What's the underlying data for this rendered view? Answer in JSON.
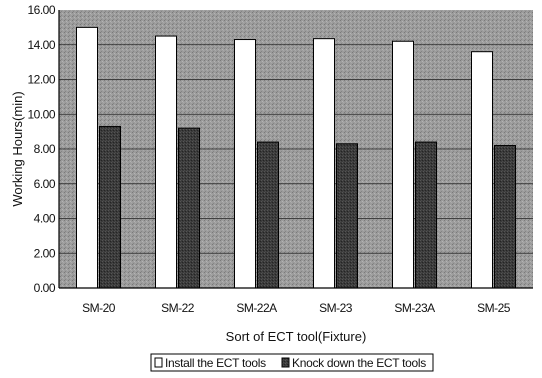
{
  "chart_data": {
    "type": "bar",
    "title": "",
    "xlabel": "Sort of ECT tool(Fixture)",
    "ylabel": "Working Hours(min)",
    "categories": [
      "SM-20",
      "SM-22",
      "SM-22A",
      "SM-23",
      "SM-23A",
      "SM-25"
    ],
    "series": [
      {
        "name": "Install the ECT tools",
        "values": [
          15.0,
          14.5,
          14.3,
          14.35,
          14.2,
          13.6
        ],
        "color": "#ffffff"
      },
      {
        "name": "Knock down the ECT tools",
        "values": [
          9.3,
          9.2,
          8.4,
          8.3,
          8.4,
          8.2
        ],
        "color": "#3a3a3a"
      }
    ],
    "ylim": [
      0,
      16
    ],
    "yticks": [
      "0.00",
      "2.00",
      "4.00",
      "6.00",
      "8.00",
      "10.00",
      "12.00",
      "14.00",
      "16.00"
    ],
    "grid": true,
    "legend_position": "bottom",
    "plot_background": "#9a9a9a"
  }
}
